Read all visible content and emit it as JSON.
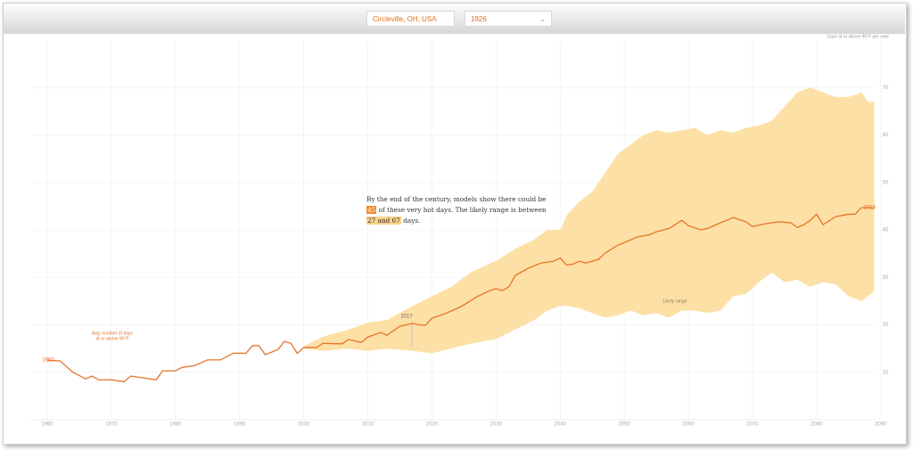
{
  "controls": {
    "location": "Circleville, OH, USA",
    "year": "1926"
  },
  "chart_data": {
    "type": "line",
    "y_axis_label": "Days at or above 90°F per year",
    "x": [
      1960,
      1962,
      1964,
      1966,
      1967,
      1968,
      1970,
      1972,
      1973,
      1975,
      1977,
      1978,
      1980,
      1981,
      1983,
      1985,
      1987,
      1989,
      1991,
      1992,
      1993,
      1994,
      1996,
      1997,
      1998,
      1999,
      2000,
      2002,
      2003,
      2005,
      2006,
      2007,
      2009,
      2010,
      2012,
      2013,
      2015,
      2017,
      2018,
      2019,
      2020,
      2022,
      2024,
      2025,
      2027,
      2029,
      2030,
      2031,
      2032,
      2033,
      2035,
      2037,
      2039,
      2040,
      2041,
      2042,
      2043,
      2044,
      2046,
      2047,
      2049,
      2050,
      2052,
      2054,
      2055,
      2057,
      2059,
      2060,
      2062,
      2063,
      2065,
      2067,
      2069,
      2070,
      2072,
      2074,
      2076,
      2077,
      2078,
      2079,
      2080,
      2081,
      2083,
      2085,
      2086,
      2087,
      2088,
      2089
    ],
    "series": [
      {
        "name": [
          "Avg. number of days",
          "at or above 90°F"
        ],
        "color": "#e8732a",
        "values": [
          12.5,
          12.4,
          10,
          8.6,
          9.2,
          8.4,
          8.4,
          8,
          9.2,
          8.8,
          8.4,
          10.3,
          10.3,
          11,
          11.4,
          12.6,
          12.6,
          14,
          14,
          15.6,
          15.6,
          13.7,
          14.8,
          16.5,
          16.1,
          14,
          15.2,
          15.2,
          16.1,
          16,
          16,
          16.9,
          16.3,
          17.4,
          18.4,
          17.8,
          19.7,
          20.3,
          20,
          19.9,
          21.4,
          22.3,
          23.5,
          24.2,
          25.9,
          27.2,
          27.6,
          27.2,
          28,
          30.4,
          31.9,
          33,
          33.4,
          34.1,
          32.6,
          32.8,
          33.4,
          33,
          33.8,
          35.1,
          36.8,
          37.3,
          38.5,
          39,
          39.6,
          40.3,
          42,
          40.9,
          40,
          40.3,
          41.5,
          42.6,
          41.7,
          40.7,
          41.3,
          41.7,
          41.5,
          40.5,
          41.1,
          42,
          43.3,
          41.1,
          42.8,
          43.3,
          43.3,
          44.7,
          44.7,
          44.5
        ]
      }
    ],
    "band": {
      "name": "Likely range",
      "color": "#fde0a6",
      "x": [
        2000,
        2003,
        2007,
        2010,
        2013,
        2017,
        2020,
        2023,
        2026,
        2030,
        2033,
        2036,
        2038,
        2040,
        2041,
        2043,
        2045,
        2047,
        2049,
        2051,
        2053,
        2055,
        2057,
        2059,
        2061,
        2063,
        2065,
        2067,
        2069,
        2071,
        2073,
        2075,
        2077,
        2079,
        2081,
        2083,
        2085,
        2087,
        2088,
        2089
      ],
      "low": [
        15,
        14.5,
        15,
        14.5,
        15,
        14.5,
        14,
        15,
        16,
        17,
        19,
        21,
        23,
        24,
        24,
        23.5,
        22.5,
        21.5,
        22,
        23,
        22,
        22.5,
        21.5,
        23,
        23,
        22.5,
        23,
        26,
        26.5,
        29,
        31,
        29,
        29.5,
        28,
        29,
        28.5,
        26,
        25,
        26,
        27
      ],
      "high": [
        15.5,
        17.5,
        19,
        20.5,
        21,
        24,
        26,
        28,
        31,
        33.5,
        36,
        38,
        40,
        40,
        43,
        46,
        48,
        52,
        56,
        58,
        60,
        61,
        60.5,
        61,
        61.5,
        60,
        61,
        60.5,
        61.5,
        62,
        63,
        66,
        69,
        70,
        69,
        68,
        68,
        69,
        67,
        67
      ]
    },
    "annotations": {
      "start": "1960",
      "now": "2017",
      "end": "2099"
    },
    "summary": [
      "By the end of the century, models show there could be ",
      "45",
      " of these very hot days. The likely range is between ",
      "27 and 67",
      " days."
    ],
    "xlim": [
      1957.5,
      2091.7
    ],
    "ylim": [
      0,
      80
    ],
    "xticks": [
      1960,
      1970,
      1980,
      1990,
      2000,
      2010,
      2020,
      2030,
      2040,
      2050,
      2060,
      2070,
      2080,
      2090
    ],
    "yticks": [
      10,
      20,
      30,
      40,
      50,
      60,
      70
    ],
    "grid": true
  }
}
